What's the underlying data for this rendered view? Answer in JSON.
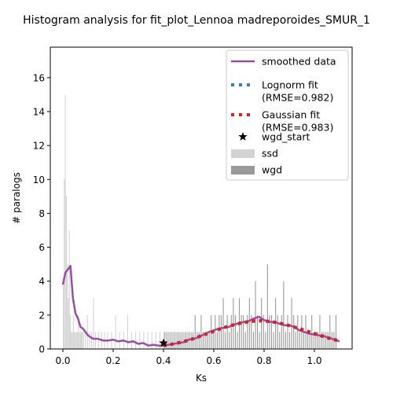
{
  "chart_data": {
    "type": "histogram",
    "title": "Histogram analysis for fit_plot_Lennoa madreporoides_SMUR_1",
    "xlabel": "Ks",
    "ylabel": "# paralogs",
    "xlim": [
      -0.05,
      1.15
    ],
    "ylim": [
      0,
      17.8
    ],
    "xticks": [
      0.0,
      0.2,
      0.4,
      0.6,
      0.8,
      1.0
    ],
    "xtick_labels": [
      "0.0",
      "0.2",
      "0.4",
      "0.6",
      "0.8",
      "1.0"
    ],
    "yticks": [
      0,
      2,
      4,
      6,
      8,
      10,
      12,
      14,
      16
    ],
    "ytick_labels": [
      "0",
      "2",
      "4",
      "6",
      "8",
      "10",
      "12",
      "14",
      "16"
    ],
    "grid": false,
    "legend": {
      "placement": "top-right",
      "entries": [
        {
          "key": "smoothed",
          "label": "smoothed data",
          "marker": "line",
          "color": "#984ea3"
        },
        {
          "key": "lognorm",
          "label": "Lognorm fit\n(RMSE=0.982)",
          "marker": "dotted-line",
          "color": "#377eb8"
        },
        {
          "key": "gaussian",
          "label": "Gaussian fit\n(RMSE=0.983)",
          "marker": "dotted-line",
          "color": "#e41a1c"
        },
        {
          "key": "wgd_start",
          "label": "wgd_start",
          "marker": "star",
          "color": "#000000"
        },
        {
          "key": "ssd",
          "label": "ssd",
          "marker": "patch",
          "color": "#d3d3d3"
        },
        {
          "key": "wgd",
          "label": "wgd",
          "marker": "patch",
          "color": "#999999"
        }
      ]
    },
    "ssd_bars": {
      "color": "#d3d3d3",
      "bin_width": 0.004,
      "x": [
        0.0,
        0.004,
        0.008,
        0.012,
        0.016,
        0.02,
        0.024,
        0.028,
        0.032,
        0.036,
        0.04,
        0.044,
        0.048,
        0.052,
        0.056,
        0.06,
        0.064,
        0.068,
        0.072,
        0.076,
        0.08,
        0.088,
        0.096,
        0.104,
        0.112,
        0.12,
        0.128,
        0.14,
        0.152,
        0.164,
        0.176,
        0.192,
        0.208,
        0.224,
        0.24,
        0.256,
        0.272,
        0.288,
        0.304,
        0.32,
        0.336,
        0.352,
        0.368,
        0.384,
        0.4
      ],
      "values": [
        4,
        10,
        15,
        9,
        5,
        3,
        7,
        2,
        1,
        1,
        2,
        1,
        1,
        1,
        1,
        2,
        1,
        1,
        1,
        1,
        1,
        1,
        2,
        1,
        1,
        3,
        1,
        1,
        1,
        1,
        1,
        1,
        2,
        1,
        1,
        2,
        1,
        1,
        1,
        1,
        1,
        1,
        1,
        1,
        1
      ]
    },
    "wgd_bars": {
      "color": "#999999",
      "bin_width": 0.004,
      "x": [
        0.404,
        0.412,
        0.42,
        0.428,
        0.436,
        0.444,
        0.452,
        0.46,
        0.468,
        0.476,
        0.484,
        0.492,
        0.5,
        0.508,
        0.516,
        0.524,
        0.532,
        0.54,
        0.548,
        0.556,
        0.564,
        0.572,
        0.58,
        0.588,
        0.596,
        0.604,
        0.612,
        0.62,
        0.628,
        0.636,
        0.644,
        0.652,
        0.66,
        0.668,
        0.676,
        0.684,
        0.692,
        0.7,
        0.708,
        0.716,
        0.724,
        0.732,
        0.74,
        0.748,
        0.756,
        0.764,
        0.772,
        0.78,
        0.788,
        0.796,
        0.804,
        0.812,
        0.82,
        0.828,
        0.836,
        0.844,
        0.852,
        0.86,
        0.868,
        0.876,
        0.884,
        0.892,
        0.9,
        0.908,
        0.916,
        0.924,
        0.932,
        0.94,
        0.948,
        0.956,
        0.964,
        0.972,
        0.98,
        0.988,
        0.996,
        1.004,
        1.012,
        1.02,
        1.028,
        1.036,
        1.044,
        1.052,
        1.06,
        1.068,
        1.076,
        1.084
      ],
      "values": [
        1,
        1,
        1,
        1,
        1,
        1,
        1,
        1,
        1,
        1,
        1,
        1,
        1,
        1,
        1,
        2,
        1,
        1,
        2,
        1,
        1,
        1,
        1,
        2,
        1,
        2,
        1,
        2,
        2,
        3,
        1,
        2,
        1,
        2,
        3,
        2,
        1,
        3,
        2,
        2,
        1,
        2,
        3,
        2,
        1,
        4,
        2,
        1,
        3,
        2,
        1,
        5,
        2,
        2,
        1,
        3,
        2,
        1,
        2,
        4,
        1,
        2,
        1,
        3,
        2,
        1,
        2,
        1,
        2,
        1,
        2,
        1,
        1,
        2,
        1,
        1,
        1,
        2,
        1,
        1,
        1,
        1,
        2,
        1,
        1,
        2
      ]
    },
    "smoothed_data": {
      "color": "#984ea3",
      "x": [
        0.0,
        0.01,
        0.02,
        0.03,
        0.04,
        0.05,
        0.06,
        0.07,
        0.08,
        0.09,
        0.1,
        0.12,
        0.14,
        0.16,
        0.18,
        0.2,
        0.22,
        0.24,
        0.26,
        0.28,
        0.3,
        0.32,
        0.34,
        0.36,
        0.38,
        0.4,
        0.42,
        0.44,
        0.46,
        0.48,
        0.5,
        0.52,
        0.54,
        0.56,
        0.58,
        0.6,
        0.62,
        0.64,
        0.66,
        0.68,
        0.7,
        0.72,
        0.74,
        0.76,
        0.78,
        0.8,
        0.82,
        0.84,
        0.86,
        0.88,
        0.9,
        0.92,
        0.94,
        0.96,
        0.98,
        1.0,
        1.02,
        1.04,
        1.06,
        1.08,
        1.1
      ],
      "values": [
        3.8,
        4.5,
        4.7,
        4.9,
        3.0,
        2.1,
        1.8,
        1.3,
        1.2,
        1.0,
        0.8,
        0.6,
        0.6,
        0.5,
        0.5,
        0.55,
        0.45,
        0.5,
        0.4,
        0.45,
        0.3,
        0.35,
        0.2,
        0.25,
        0.2,
        0.2,
        0.25,
        0.3,
        0.35,
        0.4,
        0.55,
        0.6,
        0.7,
        0.85,
        1.0,
        1.1,
        1.2,
        1.25,
        1.3,
        1.45,
        1.5,
        1.6,
        1.65,
        1.8,
        1.9,
        1.7,
        1.6,
        1.6,
        1.5,
        1.4,
        1.4,
        1.3,
        1.1,
        1.0,
        0.9,
        0.85,
        0.8,
        0.75,
        0.65,
        0.55,
        0.45
      ]
    },
    "lognorm_fit": {
      "color": "#377eb8",
      "x": [
        0.4,
        0.43,
        0.46,
        0.49,
        0.52,
        0.55,
        0.58,
        0.61,
        0.64,
        0.67,
        0.7,
        0.73,
        0.76,
        0.79,
        0.82,
        0.85,
        0.88,
        0.91,
        0.94,
        0.97,
        1.0,
        1.03,
        1.06,
        1.09
      ],
      "values": [
        0.22,
        0.28,
        0.37,
        0.48,
        0.62,
        0.78,
        0.94,
        1.1,
        1.26,
        1.38,
        1.5,
        1.58,
        1.64,
        1.66,
        1.62,
        1.56,
        1.46,
        1.34,
        1.2,
        1.06,
        0.92,
        0.78,
        0.64,
        0.52
      ]
    },
    "gaussian_fit": {
      "color": "#e41a1c",
      "x": [
        0.4,
        0.43,
        0.46,
        0.49,
        0.52,
        0.55,
        0.58,
        0.61,
        0.64,
        0.67,
        0.7,
        0.73,
        0.76,
        0.79,
        0.82,
        0.85,
        0.88,
        0.91,
        0.94,
        0.97,
        1.0,
        1.03,
        1.06,
        1.09
      ],
      "values": [
        0.2,
        0.27,
        0.36,
        0.47,
        0.61,
        0.77,
        0.93,
        1.1,
        1.26,
        1.39,
        1.51,
        1.59,
        1.65,
        1.67,
        1.63,
        1.56,
        1.46,
        1.34,
        1.2,
        1.05,
        0.9,
        0.76,
        0.62,
        0.5
      ]
    },
    "wgd_start": {
      "x": 0.4,
      "y": 0.35,
      "color": "#000000"
    }
  }
}
